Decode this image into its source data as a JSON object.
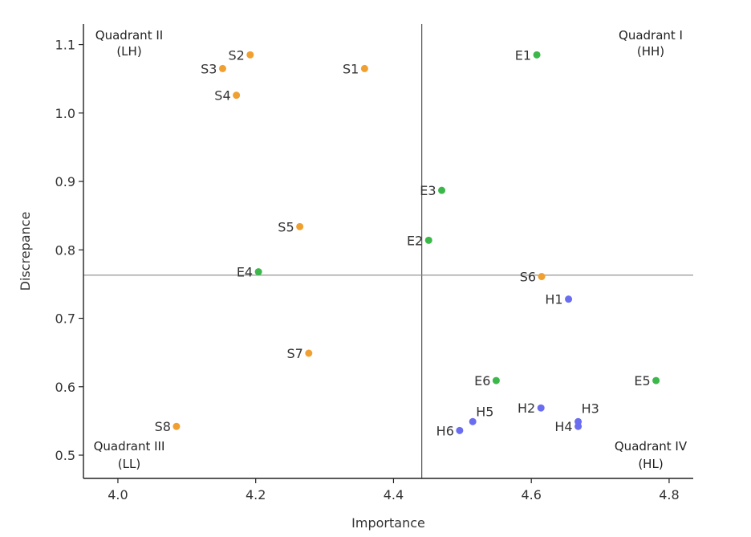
{
  "chart_data": {
    "type": "scatter",
    "xlabel": "Importance",
    "ylabel": "Discrepance",
    "xlim": [
      3.95,
      4.835
    ],
    "ylim": [
      0.466,
      1.13
    ],
    "xticks": [
      4.0,
      4.2,
      4.4,
      4.6,
      4.8
    ],
    "xtick_labels": [
      "4.0",
      "4.2",
      "4.4",
      "4.6",
      "4.8"
    ],
    "yticks": [
      0.5,
      0.6,
      0.7,
      0.8,
      0.9,
      1.0,
      1.1
    ],
    "ytick_labels": [
      "0.5",
      "0.6",
      "0.7",
      "0.8",
      "0.9",
      "1.0",
      "1.1"
    ],
    "reference_lines": {
      "x": 4.441,
      "y": 0.763,
      "color": "#888888"
    },
    "grid": false,
    "colors": {
      "S": "#f0a030",
      "E": "#3cb84a",
      "H": "#6a6df0"
    },
    "quadrant_labels": [
      {
        "name": "Quadrant I",
        "code": "(HH)",
        "position": "top-right"
      },
      {
        "name": "Quadrant II",
        "code": "(LH)",
        "position": "top-left"
      },
      {
        "name": "Quadrant III",
        "code": "(LL)",
        "position": "bottom-left"
      },
      {
        "name": "Quadrant IV",
        "code": "(HL)",
        "position": "bottom-right"
      }
    ],
    "points": [
      {
        "label": "S1",
        "group": "S",
        "x": 4.358,
        "y": 1.065,
        "label_side": "left"
      },
      {
        "label": "S2",
        "group": "S",
        "x": 4.192,
        "y": 1.085,
        "label_side": "left"
      },
      {
        "label": "S3",
        "group": "S",
        "x": 4.152,
        "y": 1.065,
        "label_side": "left"
      },
      {
        "label": "S4",
        "group": "S",
        "x": 4.172,
        "y": 1.026,
        "label_side": "left"
      },
      {
        "label": "S5",
        "group": "S",
        "x": 4.264,
        "y": 0.834,
        "label_side": "left"
      },
      {
        "label": "S6",
        "group": "S",
        "x": 4.615,
        "y": 0.761,
        "label_side": "left"
      },
      {
        "label": "S7",
        "group": "S",
        "x": 4.277,
        "y": 0.649,
        "label_side": "left"
      },
      {
        "label": "S8",
        "group": "S",
        "x": 4.085,
        "y": 0.542,
        "label_side": "left"
      },
      {
        "label": "E1",
        "group": "E",
        "x": 4.608,
        "y": 1.085,
        "label_side": "left"
      },
      {
        "label": "E2",
        "group": "E",
        "x": 4.451,
        "y": 0.814,
        "label_side": "left"
      },
      {
        "label": "E3",
        "group": "E",
        "x": 4.47,
        "y": 0.887,
        "label_side": "left"
      },
      {
        "label": "E4",
        "group": "E",
        "x": 4.204,
        "y": 0.768,
        "label_side": "left"
      },
      {
        "label": "E5",
        "group": "E",
        "x": 4.781,
        "y": 0.609,
        "label_side": "left"
      },
      {
        "label": "E6",
        "group": "E",
        "x": 4.549,
        "y": 0.609,
        "label_side": "left"
      },
      {
        "label": "H1",
        "group": "H",
        "x": 4.654,
        "y": 0.728,
        "label_side": "left"
      },
      {
        "label": "H2",
        "group": "H",
        "x": 4.614,
        "y": 0.569,
        "label_side": "left"
      },
      {
        "label": "H3",
        "group": "H",
        "x": 4.668,
        "y": 0.549,
        "label_side": "below-right"
      },
      {
        "label": "H4",
        "group": "H",
        "x": 4.668,
        "y": 0.542,
        "label_side": "left"
      },
      {
        "label": "H5",
        "group": "H",
        "x": 4.515,
        "y": 0.549,
        "label_side": "above-right"
      },
      {
        "label": "H6",
        "group": "H",
        "x": 4.496,
        "y": 0.536,
        "label_side": "left"
      }
    ]
  }
}
